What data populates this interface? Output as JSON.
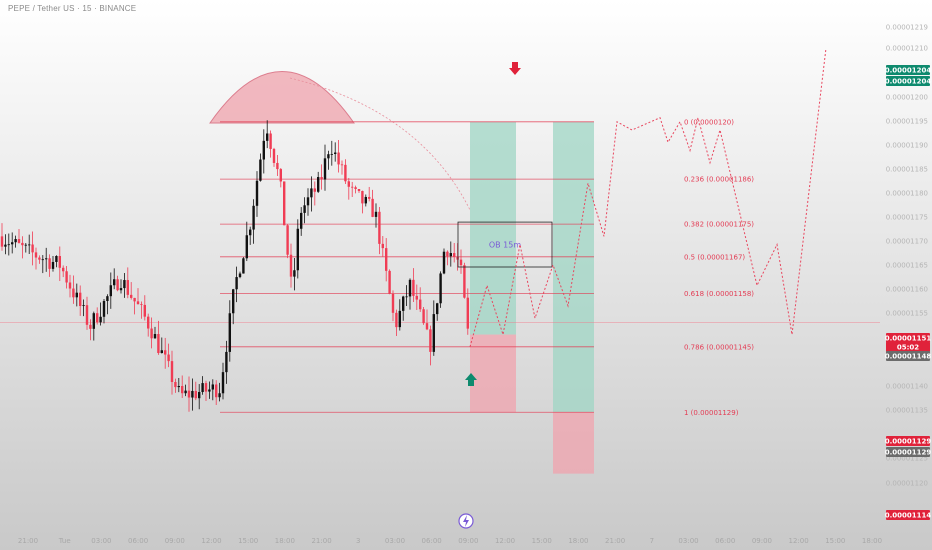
{
  "header": {
    "symbol": "PEPE / Tether US · 15 · BINANCE"
  },
  "colors": {
    "up": "#111111",
    "down": "#f03c54",
    "fib": "#e33d55",
    "green_zone": "#9fd5c4",
    "red_zone": "#f0a3ad",
    "badge_green": "#0e8a6e",
    "badge_red": "#e0223a",
    "badge_grey": "#6b6b6b",
    "ob_text": "#7a5bd6"
  },
  "chart_data": {
    "type": "candlestick",
    "price_range": [
      1.11e-05,
      1.22e-05
    ],
    "price_ticks": [
      "0.00001219",
      "0.00001210",
      "0.00001200",
      "0.00001195",
      "0.00001190",
      "0.00001185",
      "0.00001180",
      "0.00001175",
      "0.00001170",
      "0.00001165",
      "0.00001160",
      "0.00001155",
      "0.00001140",
      "0.00001135",
      "0.00001125",
      "0.00001120"
    ],
    "time_ticks": [
      "21:00",
      "Tue",
      "03:00",
      "06:00",
      "09:00",
      "12:00",
      "15:00",
      "18:00",
      "21:00",
      "3",
      "03:00",
      "06:00",
      "09:00",
      "12:00",
      "15:00",
      "18:00",
      "21:00",
      "7",
      "03:00",
      "06:00",
      "09:00",
      "12:00",
      "15:00",
      "18:00"
    ],
    "fib_levels": [
      {
        "ratio": 0,
        "price": 1.2e-05,
        "label": "0 (0.0000120)"
      },
      {
        "ratio": 0.236,
        "price": 1.186e-05,
        "label": "0.236 (0.00001186)"
      },
      {
        "ratio": 0.382,
        "price": 1.175e-05,
        "label": "0.382 (0.00001175)"
      },
      {
        "ratio": 0.5,
        "price": 1.167e-05,
        "label": "0.5 (0.00001167)"
      },
      {
        "ratio": 0.618,
        "price": 1.158e-05,
        "label": "0.618 (0.00001158)"
      },
      {
        "ratio": 0.786,
        "price": 1.145e-05,
        "label": "0.786 (0.00001145)"
      },
      {
        "ratio": 1,
        "price": 1.129e-05,
        "label": "1 (0.00001129)"
      }
    ],
    "order_block": {
      "label": "OB 15m",
      "top": 1.175e-05,
      "bottom": 1.165e-05
    },
    "current_price": 1.151e-05,
    "axis_badges": [
      {
        "text": "0.00001204",
        "price": 1.207e-05,
        "color": "badge_green"
      },
      {
        "text": "0.00001204",
        "price": 1.204e-05,
        "color": "badge_green"
      },
      {
        "text": "0.00001151",
        "price": 1.151e-05,
        "color": "badge_red"
      },
      {
        "text": "05:02",
        "price": 1.149e-05,
        "color": "badge_red"
      },
      {
        "text": "0.00001148",
        "price": 1.147e-05,
        "color": "badge_grey"
      },
      {
        "text": "0.00001129",
        "price": 1.13e-05,
        "color": "badge_red"
      },
      {
        "text": "0.00001129",
        "price": 1.128e-05,
        "color": "badge_grey"
      },
      {
        "text": "0.00001114",
        "price": 1.114e-05,
        "color": "badge_red"
      }
    ],
    "projection_path": [
      [
        1.145e-05,
        0
      ],
      [
        1.16e-05,
        1
      ],
      [
        1.148e-05,
        2
      ],
      [
        1.17e-05,
        3
      ],
      [
        1.152e-05,
        4
      ],
      [
        1.165e-05,
        5
      ],
      [
        1.155e-05,
        6
      ],
      [
        1.185e-05,
        7
      ],
      [
        1.172e-05,
        8
      ],
      [
        1.2e-05,
        9
      ],
      [
        1.198e-05,
        10
      ],
      [
        1.201e-05,
        11
      ],
      [
        1.195e-05,
        12
      ],
      [
        1.2e-05,
        13
      ],
      [
        1.193e-05,
        14
      ],
      [
        1.201e-05,
        15
      ],
      [
        1.19e-05,
        16
      ],
      [
        1.198e-05,
        17
      ],
      [
        1.16e-05,
        18
      ],
      [
        1.17e-05,
        19
      ],
      [
        1.148e-05,
        20
      ],
      [
        1.218e-05,
        21
      ]
    ]
  }
}
